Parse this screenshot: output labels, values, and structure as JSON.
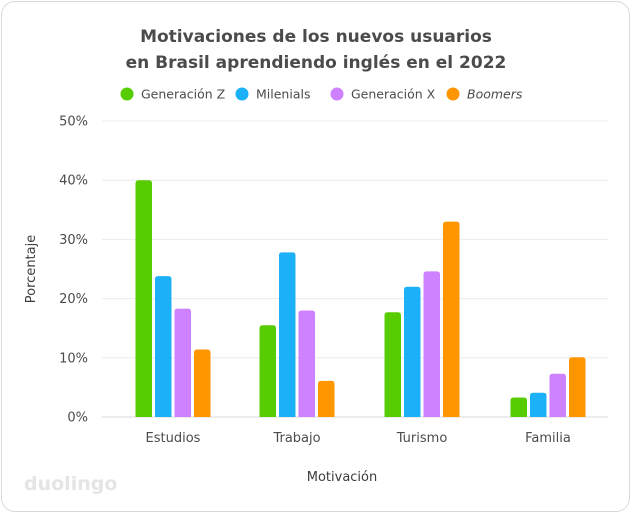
{
  "chart_data": {
    "type": "bar",
    "title": [
      "Motivaciones de los nuevos usuarios",
      "en Brasil aprendiendo inglés en el 2022"
    ],
    "xlabel": "Motivación",
    "ylabel": "Porcentaje",
    "ylim": [
      0,
      50
    ],
    "yticks": [
      0,
      10,
      20,
      30,
      40,
      50
    ],
    "ytick_labels": [
      "0%",
      "10%",
      "20%",
      "30%",
      "40%",
      "50%"
    ],
    "categories": [
      "Estudios",
      "Trabajo",
      "Turismo",
      "Familia"
    ],
    "series": [
      {
        "name": "Generación Z",
        "color": "#58cc02",
        "italic": false,
        "values": [
          40,
          15.5,
          17.7,
          3.3
        ]
      },
      {
        "name": "Milenials",
        "color": "#1cb0f6",
        "italic": false,
        "values": [
          23.8,
          27.8,
          22,
          4.1
        ]
      },
      {
        "name": "Generación X",
        "color": "#ce82ff",
        "italic": false,
        "values": [
          18.3,
          18,
          24.6,
          7.3
        ]
      },
      {
        "name": "Boomers",
        "color": "#ff9600",
        "italic": true,
        "values": [
          11.4,
          6.1,
          33,
          10.1
        ]
      }
    ],
    "grid": true,
    "legend_position": "top"
  },
  "brand": {
    "logo_text": "duolingo"
  }
}
